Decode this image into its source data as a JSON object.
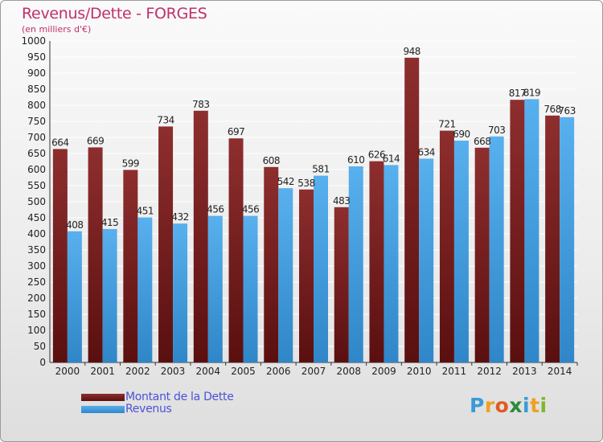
{
  "title": "Revenus/Dette - FORGES",
  "subtitle": "(en milliers d'€)",
  "logo_letters": [
    "P",
    "r",
    "o",
    "x",
    "i",
    "t",
    "i"
  ],
  "colors": {
    "dette": "#7a1c1c",
    "revenus": "#3f9fe0",
    "title": "#c0306a",
    "legend_text": "#4a52d8"
  },
  "legend": [
    {
      "label": "Montant de la Dette",
      "color": "#6b1414"
    },
    {
      "label": "Revenus",
      "color": "#3f9fe0"
    }
  ],
  "chart_data": {
    "type": "bar",
    "categories": [
      "2000",
      "2001",
      "2002",
      "2003",
      "2004",
      "2005",
      "2006",
      "2007",
      "2008",
      "2009",
      "2010",
      "2011",
      "2012",
      "2013",
      "2014"
    ],
    "series": [
      {
        "name": "Montant de la Dette",
        "values": [
          664,
          669,
          599,
          734,
          783,
          697,
          608,
          538,
          483,
          626,
          948,
          721,
          668,
          817,
          768
        ]
      },
      {
        "name": "Revenus",
        "values": [
          408,
          415,
          451,
          432,
          456,
          456,
          542,
          581,
          610,
          614,
          634,
          690,
          703,
          819,
          763
        ]
      }
    ],
    "ylim": [
      0,
      1000
    ],
    "yticks": [
      0,
      50,
      100,
      150,
      200,
      250,
      300,
      350,
      400,
      450,
      500,
      550,
      600,
      650,
      700,
      750,
      800,
      850,
      900,
      950,
      1000
    ],
    "grid": true,
    "legend_position": "bottom-left"
  }
}
